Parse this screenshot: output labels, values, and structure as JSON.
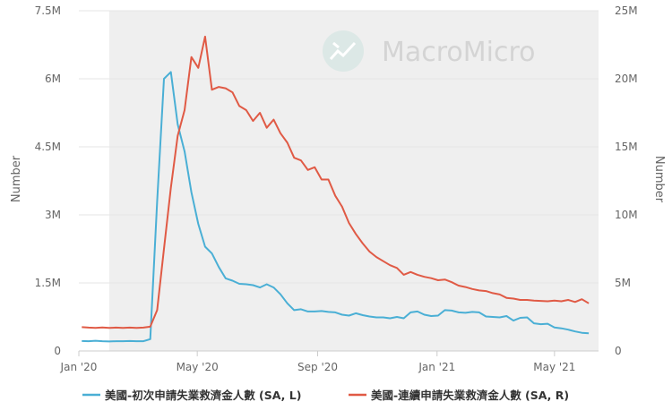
{
  "watermark": {
    "brand": "MacroMicro",
    "logo_icon": "macromicro-logo-icon"
  },
  "chart_data": {
    "type": "line",
    "title": "",
    "x_ticks": [
      "Jan '20",
      "May '20",
      "Sep '20",
      "Jan '21",
      "May '21"
    ],
    "x_range": [
      "2020-01-01",
      "2021-06-15"
    ],
    "y_left": {
      "label": "Number",
      "lim": [
        0,
        7500000
      ],
      "ticks": [
        "0",
        "1.5M",
        "3M",
        "4.5M",
        "6M",
        "7.5M"
      ]
    },
    "y_right": {
      "label": "Number",
      "lim": [
        0,
        25000000
      ],
      "ticks": [
        "0",
        "5M",
        "10M",
        "15M",
        "20M",
        "25M"
      ]
    },
    "shaded_region": [
      "2020-02-01",
      "2021-06-15"
    ],
    "grid": true,
    "legend": "bottom",
    "colors": {
      "initial": "#4aafd5",
      "continuing": "#e05a45",
      "grid": "#e6e6e6",
      "shade": "#efefef"
    },
    "series": [
      {
        "name": "美國-初次申請失業救濟金人數 (SA, L)",
        "axis": "left",
        "color": "#4aafd5",
        "points": [
          [
            "2020-01-04",
            220000
          ],
          [
            "2020-01-11",
            215000
          ],
          [
            "2020-01-18",
            225000
          ],
          [
            "2020-01-25",
            215000
          ],
          [
            "2020-02-01",
            210000
          ],
          [
            "2020-02-08",
            215000
          ],
          [
            "2020-02-15",
            215000
          ],
          [
            "2020-02-22",
            220000
          ],
          [
            "2020-02-29",
            215000
          ],
          [
            "2020-03-07",
            215000
          ],
          [
            "2020-03-14",
            260000
          ],
          [
            "2020-03-21",
            3300000
          ],
          [
            "2020-03-28",
            6000000
          ],
          [
            "2020-04-04",
            6150000
          ],
          [
            "2020-04-11",
            5000000
          ],
          [
            "2020-04-18",
            4400000
          ],
          [
            "2020-04-25",
            3500000
          ],
          [
            "2020-05-02",
            2800000
          ],
          [
            "2020-05-09",
            2300000
          ],
          [
            "2020-05-16",
            2150000
          ],
          [
            "2020-05-23",
            1850000
          ],
          [
            "2020-05-30",
            1600000
          ],
          [
            "2020-06-06",
            1550000
          ],
          [
            "2020-06-13",
            1480000
          ],
          [
            "2020-06-20",
            1470000
          ],
          [
            "2020-06-27",
            1450000
          ],
          [
            "2020-07-04",
            1400000
          ],
          [
            "2020-07-11",
            1470000
          ],
          [
            "2020-07-18",
            1400000
          ],
          [
            "2020-07-25",
            1250000
          ],
          [
            "2020-08-01",
            1050000
          ],
          [
            "2020-08-08",
            900000
          ],
          [
            "2020-08-15",
            920000
          ],
          [
            "2020-08-22",
            870000
          ],
          [
            "2020-08-29",
            870000
          ],
          [
            "2020-09-05",
            880000
          ],
          [
            "2020-09-12",
            860000
          ],
          [
            "2020-09-19",
            850000
          ],
          [
            "2020-09-26",
            800000
          ],
          [
            "2020-10-03",
            780000
          ],
          [
            "2020-10-10",
            830000
          ],
          [
            "2020-10-17",
            790000
          ],
          [
            "2020-10-24",
            760000
          ],
          [
            "2020-10-31",
            740000
          ],
          [
            "2020-11-07",
            740000
          ],
          [
            "2020-11-14",
            720000
          ],
          [
            "2020-11-21",
            750000
          ],
          [
            "2020-11-28",
            720000
          ],
          [
            "2020-12-05",
            850000
          ],
          [
            "2020-12-12",
            870000
          ],
          [
            "2020-12-19",
            800000
          ],
          [
            "2020-12-26",
            770000
          ],
          [
            "2021-01-02",
            780000
          ],
          [
            "2021-01-09",
            900000
          ],
          [
            "2021-01-16",
            890000
          ],
          [
            "2021-01-23",
            850000
          ],
          [
            "2021-01-30",
            840000
          ],
          [
            "2021-02-06",
            860000
          ],
          [
            "2021-02-13",
            850000
          ],
          [
            "2021-02-20",
            760000
          ],
          [
            "2021-02-27",
            750000
          ],
          [
            "2021-03-06",
            740000
          ],
          [
            "2021-03-13",
            770000
          ],
          [
            "2021-03-20",
            670000
          ],
          [
            "2021-03-27",
            730000
          ],
          [
            "2021-04-03",
            740000
          ],
          [
            "2021-04-10",
            610000
          ],
          [
            "2021-04-17",
            590000
          ],
          [
            "2021-04-24",
            600000
          ],
          [
            "2021-05-01",
            520000
          ],
          [
            "2021-05-08",
            500000
          ],
          [
            "2021-05-15",
            470000
          ],
          [
            "2021-05-22",
            430000
          ],
          [
            "2021-05-29",
            400000
          ],
          [
            "2021-06-05",
            390000
          ]
        ]
      },
      {
        "name": "美國-連續申請失業救濟金人數 (SA, R)",
        "axis": "right",
        "color": "#e05a45",
        "points": [
          [
            "2020-01-04",
            1750000
          ],
          [
            "2020-01-11",
            1720000
          ],
          [
            "2020-01-18",
            1700000
          ],
          [
            "2020-01-25",
            1730000
          ],
          [
            "2020-02-01",
            1690000
          ],
          [
            "2020-02-08",
            1720000
          ],
          [
            "2020-02-15",
            1700000
          ],
          [
            "2020-02-22",
            1720000
          ],
          [
            "2020-02-29",
            1700000
          ],
          [
            "2020-03-07",
            1720000
          ],
          [
            "2020-03-14",
            1780000
          ],
          [
            "2020-03-21",
            3000000
          ],
          [
            "2020-03-28",
            7500000
          ],
          [
            "2020-04-04",
            12000000
          ],
          [
            "2020-04-11",
            15800000
          ],
          [
            "2020-04-18",
            17700000
          ],
          [
            "2020-04-25",
            21600000
          ],
          [
            "2020-05-02",
            20800000
          ],
          [
            "2020-05-09",
            23100000
          ],
          [
            "2020-05-16",
            19200000
          ],
          [
            "2020-05-23",
            19400000
          ],
          [
            "2020-05-30",
            19300000
          ],
          [
            "2020-06-06",
            19000000
          ],
          [
            "2020-06-13",
            18000000
          ],
          [
            "2020-06-20",
            17700000
          ],
          [
            "2020-06-27",
            16900000
          ],
          [
            "2020-07-04",
            17500000
          ],
          [
            "2020-07-11",
            16400000
          ],
          [
            "2020-07-18",
            17000000
          ],
          [
            "2020-07-25",
            16000000
          ],
          [
            "2020-08-01",
            15300000
          ],
          [
            "2020-08-08",
            14200000
          ],
          [
            "2020-08-15",
            14000000
          ],
          [
            "2020-08-22",
            13300000
          ],
          [
            "2020-08-29",
            13500000
          ],
          [
            "2020-09-05",
            12600000
          ],
          [
            "2020-09-12",
            12600000
          ],
          [
            "2020-09-19",
            11400000
          ],
          [
            "2020-09-26",
            10600000
          ],
          [
            "2020-10-03",
            9400000
          ],
          [
            "2020-10-10",
            8600000
          ],
          [
            "2020-10-17",
            7900000
          ],
          [
            "2020-10-24",
            7300000
          ],
          [
            "2020-10-31",
            6900000
          ],
          [
            "2020-11-07",
            6600000
          ],
          [
            "2020-11-14",
            6300000
          ],
          [
            "2020-11-21",
            6100000
          ],
          [
            "2020-11-28",
            5600000
          ],
          [
            "2020-12-05",
            5800000
          ],
          [
            "2020-12-12",
            5600000
          ],
          [
            "2020-12-19",
            5450000
          ],
          [
            "2020-12-26",
            5350000
          ],
          [
            "2021-01-02",
            5200000
          ],
          [
            "2021-01-09",
            5250000
          ],
          [
            "2021-01-16",
            5050000
          ],
          [
            "2021-01-23",
            4800000
          ],
          [
            "2021-01-30",
            4700000
          ],
          [
            "2021-02-06",
            4550000
          ],
          [
            "2021-02-13",
            4450000
          ],
          [
            "2021-02-20",
            4400000
          ],
          [
            "2021-02-27",
            4250000
          ],
          [
            "2021-03-06",
            4150000
          ],
          [
            "2021-03-13",
            3900000
          ],
          [
            "2021-03-20",
            3850000
          ],
          [
            "2021-03-27",
            3750000
          ],
          [
            "2021-04-03",
            3750000
          ],
          [
            "2021-04-10",
            3700000
          ],
          [
            "2021-04-17",
            3680000
          ],
          [
            "2021-04-24",
            3650000
          ],
          [
            "2021-05-01",
            3700000
          ],
          [
            "2021-05-08",
            3650000
          ],
          [
            "2021-05-15",
            3750000
          ],
          [
            "2021-05-22",
            3600000
          ],
          [
            "2021-05-29",
            3800000
          ],
          [
            "2021-06-05",
            3500000
          ]
        ]
      }
    ]
  }
}
